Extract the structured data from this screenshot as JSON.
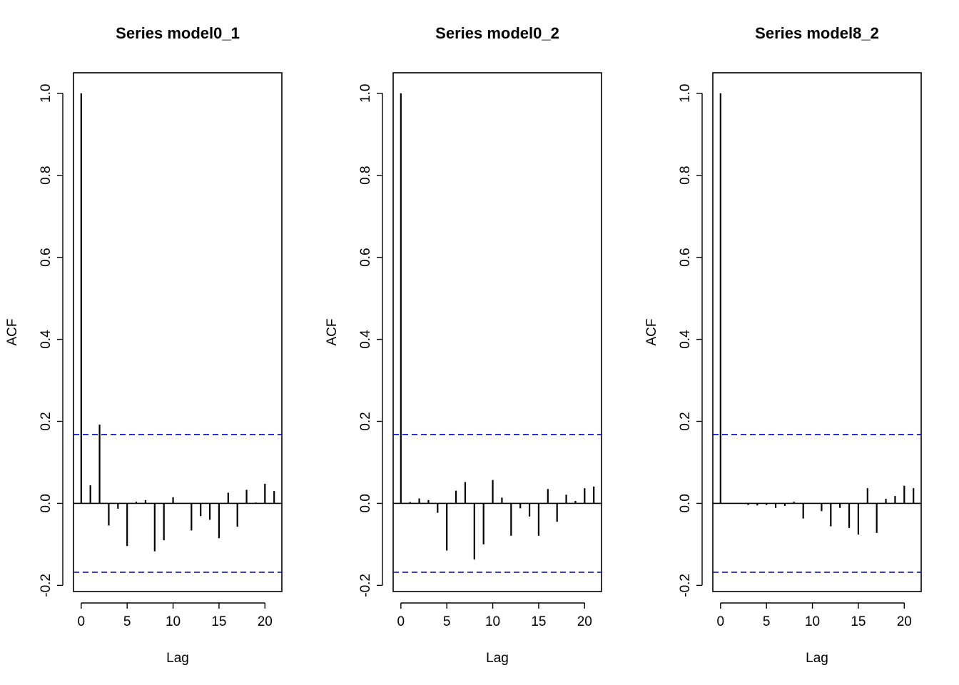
{
  "chart_data": [
    {
      "type": "bar",
      "title": "Series  model0_1",
      "xlabel": "Lag",
      "ylabel": "ACF",
      "xlim": [
        -0.84,
        21.84
      ],
      "ylim": [
        -0.215,
        1.05
      ],
      "x_ticks": [
        0,
        5,
        10,
        15,
        20
      ],
      "x_tick_labels": [
        "0",
        "5",
        "10",
        "15",
        "20"
      ],
      "y_ticks": [
        -0.2,
        0.0,
        0.2,
        0.4,
        0.6,
        0.8,
        1.0
      ],
      "y_tick_labels": [
        "-0.2",
        "0.0",
        "0.2",
        "0.4",
        "0.6",
        "0.8",
        "1.0"
      ],
      "confidence_bound": 0.168,
      "confidence_color": "#0000cc",
      "lags": [
        0,
        1,
        2,
        3,
        4,
        5,
        6,
        7,
        8,
        9,
        10,
        11,
        12,
        13,
        14,
        15,
        16,
        17,
        18,
        19,
        20,
        21
      ],
      "values": [
        1.0,
        0.044,
        0.192,
        -0.054,
        -0.013,
        -0.104,
        0.004,
        0.008,
        -0.117,
        -0.09,
        0.015,
        0.0,
        -0.066,
        -0.031,
        -0.04,
        -0.085,
        0.026,
        -0.057,
        0.033,
        0.002,
        0.048,
        0.03
      ]
    },
    {
      "type": "bar",
      "title": "Series  model0_2",
      "xlabel": "Lag",
      "ylabel": "ACF",
      "xlim": [
        -0.84,
        21.84
      ],
      "ylim": [
        -0.215,
        1.05
      ],
      "x_ticks": [
        0,
        5,
        10,
        15,
        20
      ],
      "x_tick_labels": [
        "0",
        "5",
        "10",
        "15",
        "20"
      ],
      "y_ticks": [
        -0.2,
        0.0,
        0.2,
        0.4,
        0.6,
        0.8,
        1.0
      ],
      "y_tick_labels": [
        "-0.2",
        "0.0",
        "0.2",
        "0.4",
        "0.6",
        "0.8",
        "1.0"
      ],
      "confidence_bound": 0.168,
      "confidence_color": "#0000cc",
      "lags": [
        0,
        1,
        2,
        3,
        4,
        5,
        6,
        7,
        8,
        9,
        10,
        11,
        12,
        13,
        14,
        15,
        16,
        17,
        18,
        19,
        20,
        21
      ],
      "values": [
        1.0,
        0.003,
        0.012,
        0.008,
        -0.023,
        -0.115,
        0.031,
        0.052,
        -0.137,
        -0.1,
        0.057,
        0.014,
        -0.079,
        -0.012,
        -0.032,
        -0.079,
        0.035,
        -0.045,
        0.021,
        0.006,
        0.037,
        0.041
      ]
    },
    {
      "type": "bar",
      "title": "Series  model8_2",
      "xlabel": "Lag",
      "ylabel": "ACF",
      "xlim": [
        -0.84,
        21.84
      ],
      "ylim": [
        -0.215,
        1.05
      ],
      "x_ticks": [
        0,
        5,
        10,
        15,
        20
      ],
      "x_tick_labels": [
        "0",
        "5",
        "10",
        "15",
        "20"
      ],
      "y_ticks": [
        -0.2,
        0.0,
        0.2,
        0.4,
        0.6,
        0.8,
        1.0
      ],
      "y_tick_labels": [
        "-0.2",
        "0.0",
        "0.2",
        "0.4",
        "0.6",
        "0.8",
        "1.0"
      ],
      "confidence_bound": 0.168,
      "confidence_color": "#0000cc",
      "lags": [
        0,
        1,
        2,
        3,
        4,
        5,
        6,
        7,
        8,
        9,
        10,
        11,
        12,
        13,
        14,
        15,
        16,
        17,
        18,
        19,
        20,
        21
      ],
      "values": [
        1.0,
        0.0,
        0.0,
        -0.004,
        -0.005,
        -0.004,
        -0.011,
        -0.006,
        0.004,
        -0.037,
        0.0,
        -0.019,
        -0.056,
        -0.011,
        -0.06,
        -0.076,
        0.037,
        -0.072,
        0.011,
        0.018,
        0.043,
        0.037
      ]
    }
  ]
}
